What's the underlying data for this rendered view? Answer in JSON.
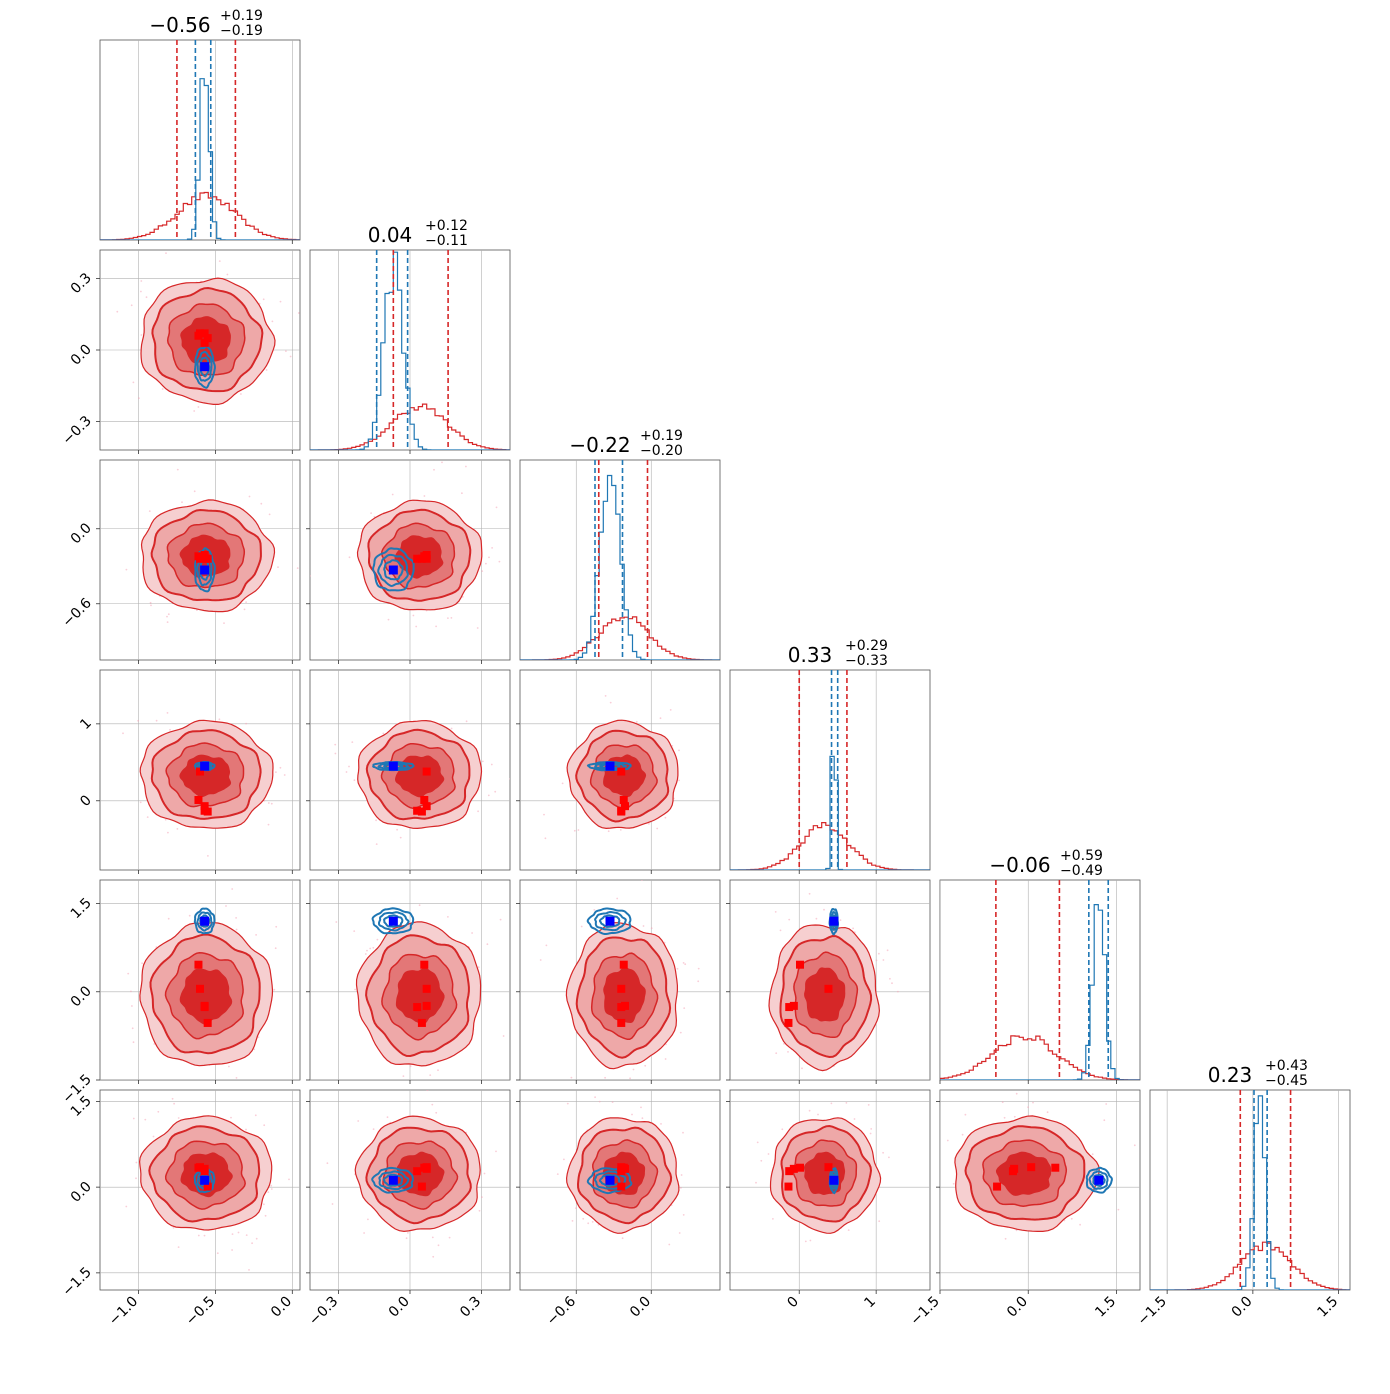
{
  "chart_data": {
    "type": "scatter",
    "variant": "corner-plot",
    "n_parameters": 6,
    "colors": {
      "wide": "#d62728",
      "narrow": "#1f77b4",
      "marker_wide": "#ff0000",
      "marker_narrow": "#0000ff",
      "grid": "#b0b0b0"
    },
    "titles": [
      {
        "value": "−0.56",
        "plus": "+0.19",
        "minus": "−0.19"
      },
      {
        "value": "0.04",
        "plus": "+0.12",
        "minus": "−0.11"
      },
      {
        "value": "−0.22",
        "plus": "+0.19",
        "minus": "−0.20"
      },
      {
        "value": "0.33",
        "plus": "+0.29",
        "minus": "−0.33"
      },
      {
        "value": "−0.06",
        "plus": "+0.59",
        "minus": "−0.49"
      },
      {
        "value": "0.23",
        "plus": "+0.43",
        "minus": "−0.45"
      }
    ],
    "ranges": [
      [
        -1.25,
        0.05
      ],
      [
        -0.42,
        0.42
      ],
      [
        -1.05,
        0.55
      ],
      [
        -0.9,
        1.7
      ],
      [
        -1.5,
        1.9
      ],
      [
        -1.8,
        1.7
      ]
    ],
    "ticks": [
      [
        -1.0,
        -0.5,
        0.0
      ],
      [
        -0.3,
        0.0,
        0.3
      ],
      [
        -0.6,
        0.0
      ],
      [
        0,
        1
      ],
      [
        -1.5,
        0.0,
        1.5
      ],
      [
        -1.5,
        0.0,
        1.5
      ]
    ],
    "tick_labels": [
      [
        "−1.0",
        "−0.5",
        "0.0"
      ],
      [
        "−0.3",
        "0.0",
        "0.3"
      ],
      [
        "−0.6",
        "0.0"
      ],
      [
        "0",
        "1"
      ],
      [
        "−1.5",
        "0.0",
        "1.5"
      ],
      [
        "−1.5",
        "0.0",
        "1.5"
      ]
    ],
    "marginals": [
      {
        "wide": {
          "mean": -0.56,
          "sd": 0.19
        },
        "narrow": {
          "mean": -0.57,
          "sd": 0.03
        },
        "wide_quantiles": [
          -0.75,
          -0.37
        ],
        "narrow_quantiles": [
          -0.63,
          -0.53
        ]
      },
      {
        "wide": {
          "mean": 0.04,
          "sd": 0.115
        },
        "narrow": {
          "mean": -0.07,
          "sd": 0.04
        },
        "wide_quantiles": [
          -0.07,
          0.16
        ],
        "narrow_quantiles": [
          -0.14,
          -0.01
        ]
      },
      {
        "wide": {
          "mean": -0.22,
          "sd": 0.195
        },
        "narrow": {
          "mean": -0.33,
          "sd": 0.08
        },
        "wide_quantiles": [
          -0.42,
          -0.03
        ],
        "narrow_quantiles": [
          -0.45,
          -0.23
        ]
      },
      {
        "wide": {
          "mean": 0.33,
          "sd": 0.31
        },
        "narrow": {
          "mean": 0.45,
          "sd": 0.025
        },
        "wide_quantiles": [
          0.0,
          0.62
        ],
        "narrow_quantiles": [
          0.42,
          0.5
        ]
      },
      {
        "wide": {
          "mean": -0.06,
          "sd": 0.54
        },
        "narrow": {
          "mean": 1.2,
          "sd": 0.1
        },
        "wide_quantiles": [
          -0.55,
          0.53
        ],
        "narrow_quantiles": [
          1.03,
          1.36
        ]
      },
      {
        "wide": {
          "mean": 0.23,
          "sd": 0.44
        },
        "narrow": {
          "mean": 0.12,
          "sd": 0.1
        },
        "wide_quantiles": [
          -0.22,
          0.66
        ],
        "narrow_quantiles": [
          0.02,
          0.25
        ]
      }
    ],
    "markers_narrow": [
      -0.57,
      -0.07,
      -0.33,
      0.45,
      1.2,
      0.12
    ],
    "markers_wide": [
      [
        -0.61,
        0.06,
        -0.22,
        0.01,
        0.46,
        0.34
      ],
      [
        -0.57,
        0.07,
        -0.21,
        -0.07,
        -0.24,
        0.32
      ],
      [
        -0.55,
        0.05,
        -0.24,
        -0.14,
        -0.53,
        0.01
      ],
      [
        -0.6,
        0.07,
        -0.24,
        0.38,
        0.05,
        0.35
      ],
      [
        -0.57,
        0.03,
        -0.24,
        -0.13,
        -0.26,
        0.28
      ]
    ]
  }
}
